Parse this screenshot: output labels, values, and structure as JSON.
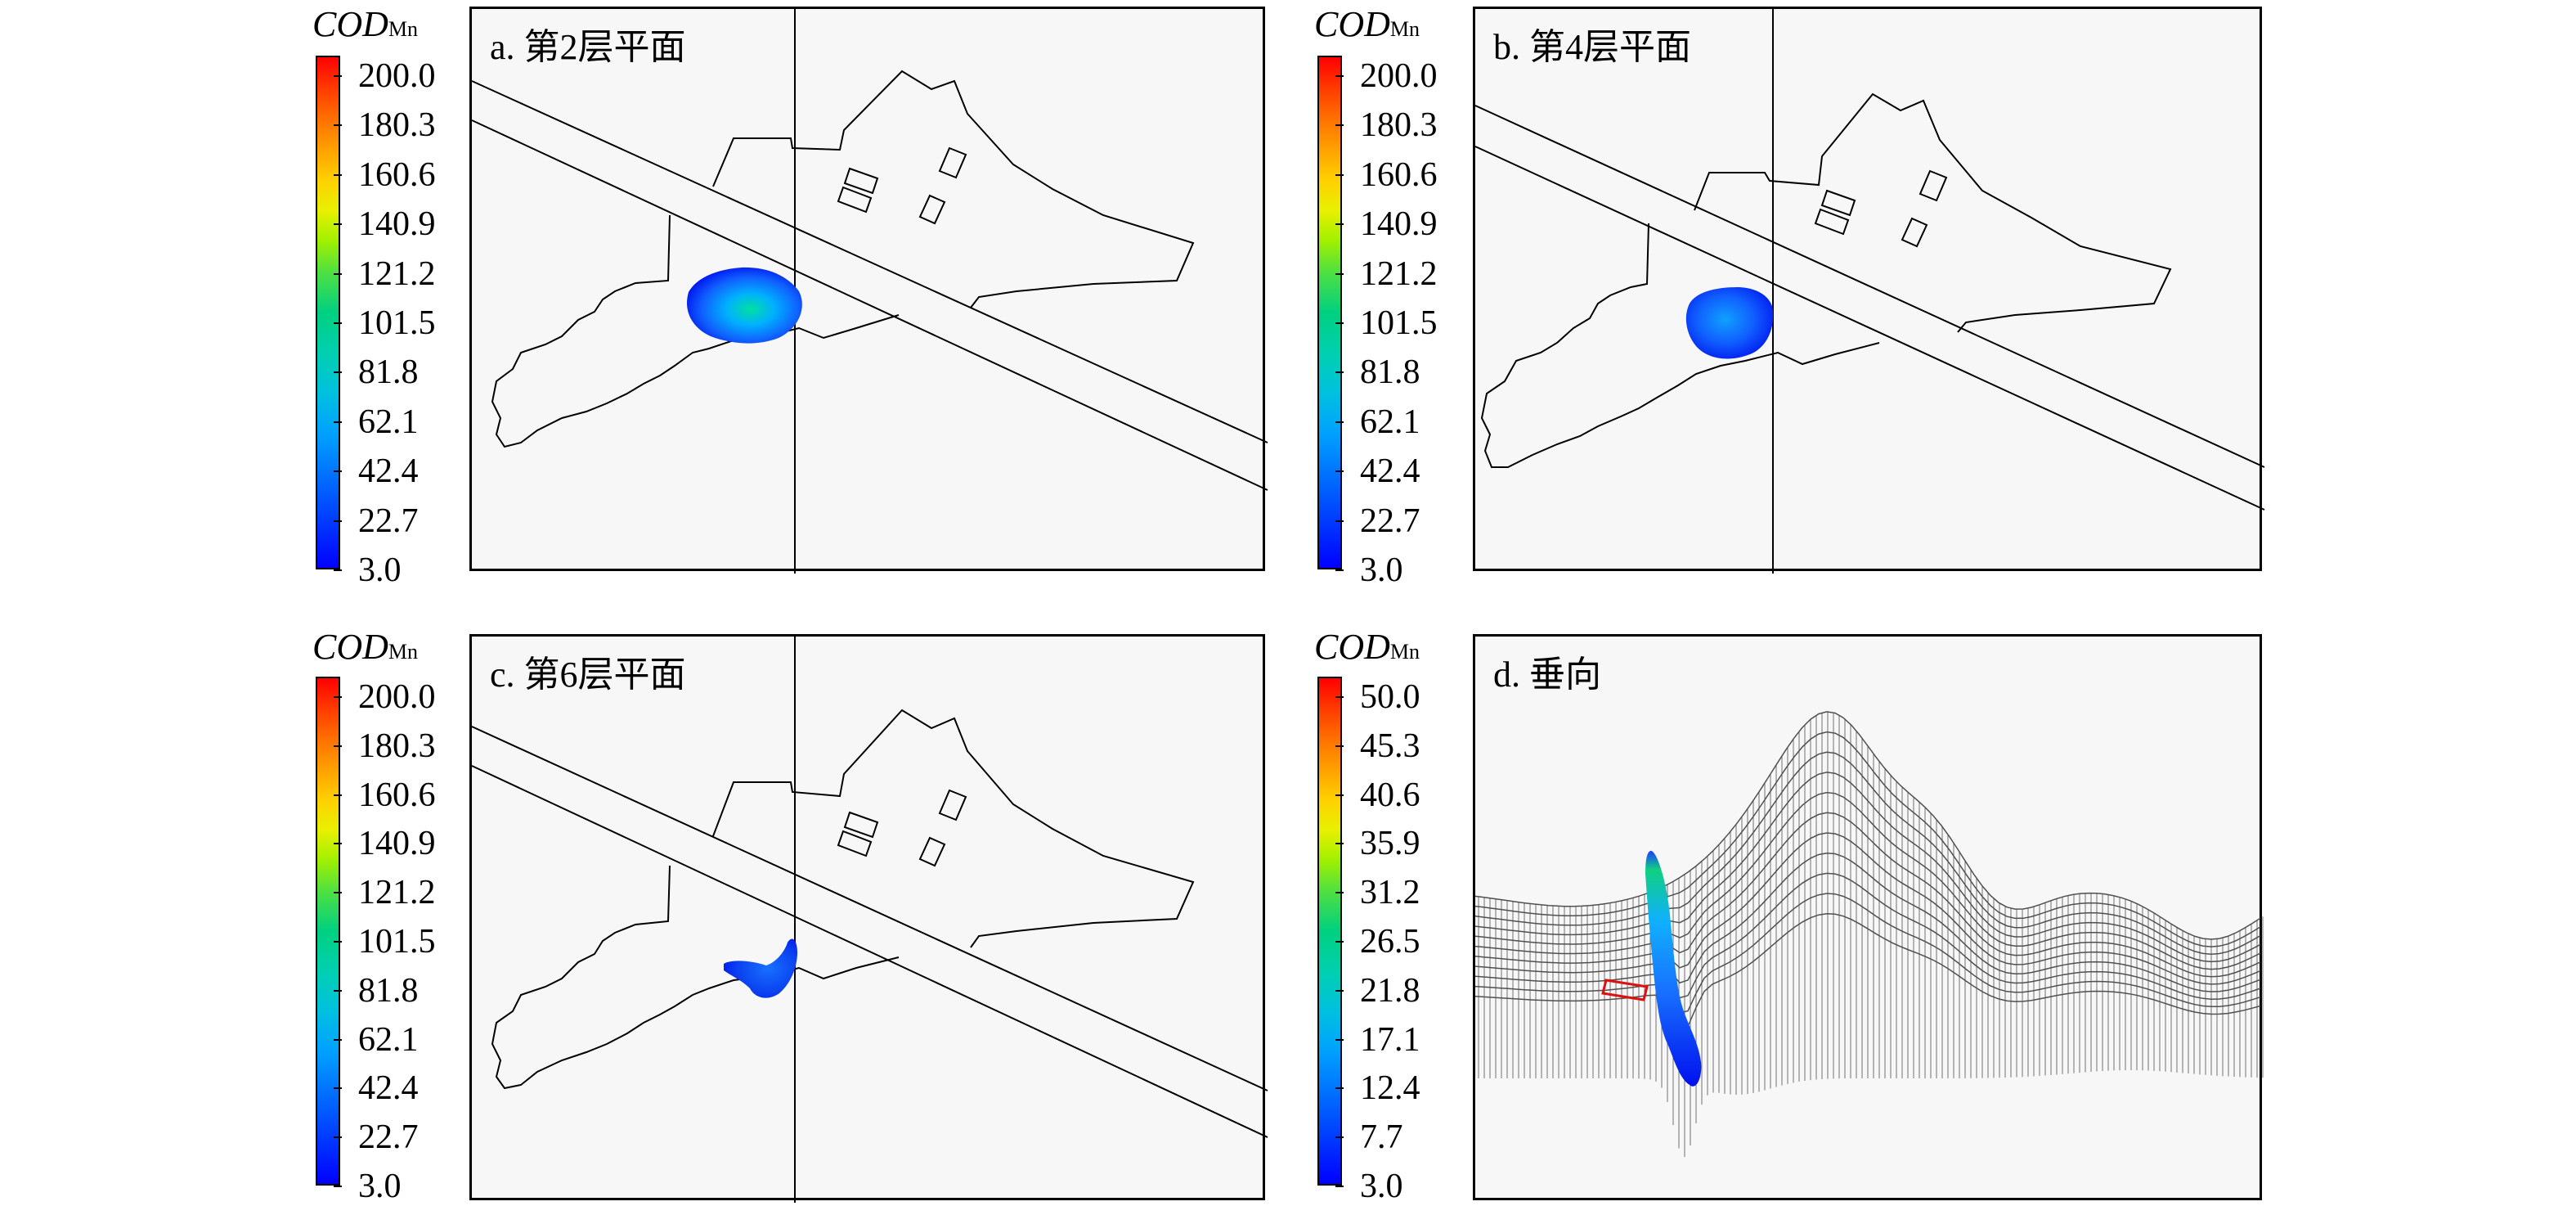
{
  "panels": [
    {
      "title": "a. 第2层平面",
      "legend": {
        "title_main": "COD",
        "title_sub": "Mn",
        "ticks": [
          "200.0",
          "180.3",
          "160.6",
          "140.9",
          "121.2",
          "101.5",
          "81.8",
          "62.1",
          "42.4",
          "22.7",
          "3.0"
        ]
      }
    },
    {
      "title": "b. 第4层平面",
      "legend": {
        "title_main": "COD",
        "title_sub": "Mn",
        "ticks": [
          "200.0",
          "180.3",
          "160.6",
          "140.9",
          "121.2",
          "101.5",
          "81.8",
          "62.1",
          "42.4",
          "22.7",
          "3.0"
        ]
      }
    },
    {
      "title": "c. 第6层平面",
      "legend": {
        "title_main": "COD",
        "title_sub": "Mn",
        "ticks": [
          "200.0",
          "180.3",
          "160.6",
          "140.9",
          "121.2",
          "101.5",
          "81.8",
          "62.1",
          "42.4",
          "22.7",
          "3.0"
        ]
      }
    },
    {
      "title": "d. 垂向",
      "legend": {
        "title_main": "COD",
        "title_sub": "Mn",
        "ticks": [
          "50.0",
          "45.3",
          "40.6",
          "35.9",
          "31.2",
          "26.5",
          "21.8",
          "17.1",
          "12.4",
          "7.7",
          "3.0"
        ]
      }
    }
  ],
  "colors": {
    "scale_low": "#0000ff",
    "scale_mid": "#00ff80",
    "scale_high": "#ff0000",
    "frame": "#000000",
    "background": "#f7f7f7"
  }
}
